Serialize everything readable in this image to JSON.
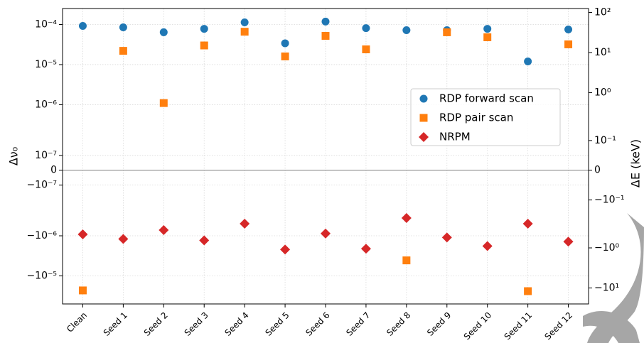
{
  "chart_data": {
    "type": "scatter",
    "y_label": "Δν₀",
    "y2_label": "ΔE (keV)",
    "categories": [
      "Clean",
      "Seed 1",
      "Seed 2",
      "Seed 3",
      "Seed 4",
      "Seed 5",
      "Seed 6",
      "Seed 7",
      "Seed 8",
      "Seed 9",
      "Seed 10",
      "Seed 11",
      "Seed 12"
    ],
    "series": [
      {
        "name": "RDP forward scan",
        "color": "#1f77b4",
        "marker": "circle",
        "values": [
          9.2e-05,
          8.5e-05,
          6.4e-05,
          7.8e-05,
          0.000113,
          3.4e-05,
          0.000118,
          8.1e-05,
          7.2e-05,
          7.2e-05,
          7.8e-05,
          1.2e-05,
          7.5e-05
        ]
      },
      {
        "name": "RDP pair scan",
        "color": "#ff7f0e",
        "marker": "square",
        "values": [
          -2.3e-05,
          2.2e-05,
          1.1e-06,
          3e-05,
          6.6e-05,
          1.6e-05,
          5.2e-05,
          2.4e-05,
          -4.1e-06,
          6.4e-05,
          4.8e-05,
          -2.4e-05,
          3.2e-05
        ]
      },
      {
        "name": "NRPM",
        "color": "#d62728",
        "marker": "diamond",
        "values": [
          -9.2e-07,
          -1.2e-06,
          -7.2e-07,
          -1.3e-06,
          -5e-07,
          -2.2e-06,
          -8.8e-07,
          -2.1e-06,
          -3.6e-07,
          -1.1e-06,
          -1.8e-06,
          -5e-07,
          -1.4e-06
        ]
      }
    ],
    "yscale": {
      "type": "symlog",
      "linthresh": 3e-07,
      "linscale": 1
    },
    "y2scale": {
      "type": "symlog",
      "linthresh": 0.15,
      "linscale": 1
    },
    "ylim": [
      -5e-05,
      0.00025
    ],
    "yticks": [
      {
        "value": 0.0001,
        "label": "10⁻⁴"
      },
      {
        "value": 1e-05,
        "label": "10⁻⁵"
      },
      {
        "value": 1e-06,
        "label": "10⁻⁶"
      },
      {
        "value": 1e-07,
        "label": "10⁻⁷"
      },
      0,
      {
        "value": -1e-07,
        "label": "−10⁻⁷"
      },
      {
        "value": -1e-06,
        "label": "−10⁻⁶"
      },
      {
        "value": -1e-05,
        "label": "−10⁻⁵"
      }
    ],
    "y2lim": [
      -25,
      125
    ],
    "y2ticks": [
      {
        "value": 100,
        "label": "10²"
      },
      {
        "value": 10,
        "label": "10¹"
      },
      {
        "value": 1,
        "label": "10⁰"
      },
      {
        "value": 0.1,
        "label": "10⁻¹"
      },
      0,
      {
        "value": -0.1,
        "label": "−10⁻¹"
      },
      {
        "value": -1,
        "label": "−10⁰"
      },
      {
        "value": -10,
        "label": "−10¹"
      }
    ],
    "grid": true,
    "legend": "right"
  }
}
